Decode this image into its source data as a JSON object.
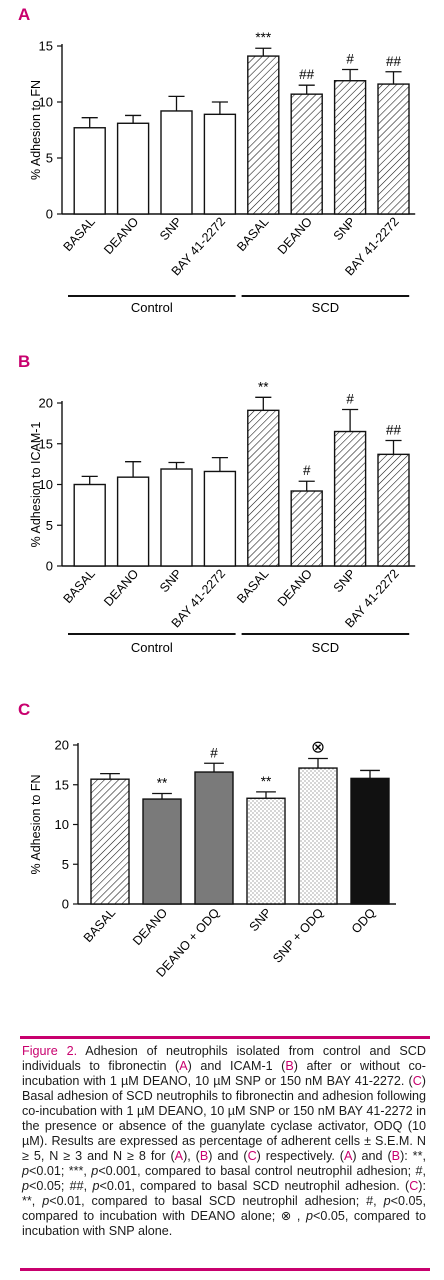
{
  "colors": {
    "accent": "#c8006e",
    "axis": "#111111",
    "bar_outline": "#111111",
    "hatch": "#111111",
    "dark_gray": "#7a7a7a",
    "black": "#111111"
  },
  "chart_data": [
    {
      "panel": "A",
      "type": "bar",
      "ylabel": "% Adhesion to FN",
      "ylim": [
        0,
        15
      ],
      "yticks": [
        0,
        5,
        10,
        15
      ],
      "categories": [
        "BASAL",
        "DEANO",
        "SNP",
        "BAY 41-2272",
        "BASAL",
        "DEANO",
        "SNP",
        "BAY 41-2272"
      ],
      "values": [
        7.7,
        8.1,
        9.2,
        8.9,
        14.1,
        10.7,
        11.9,
        11.6
      ],
      "errors": [
        0.9,
        0.7,
        1.3,
        1.1,
        0.7,
        0.8,
        1.0,
        1.1
      ],
      "fills": [
        "white",
        "white",
        "white",
        "white",
        "hatch",
        "hatch",
        "hatch",
        "hatch"
      ],
      "annotations": [
        "",
        "",
        "",
        "",
        "***",
        "##",
        "#",
        "##"
      ],
      "groups": [
        {
          "label": "Control",
          "from": 0,
          "to": 3
        },
        {
          "label": "SCD",
          "from": 4,
          "to": 7
        }
      ]
    },
    {
      "panel": "B",
      "type": "bar",
      "ylabel": "% Adhesion to ICAM-1",
      "ylim": [
        0,
        20
      ],
      "yticks": [
        0,
        5,
        10,
        15,
        20
      ],
      "categories": [
        "BASAL",
        "DEANO",
        "SNP",
        "BAY 41-2272",
        "BASAL",
        "DEANO",
        "SNP",
        "BAY 41-2272"
      ],
      "values": [
        10.0,
        10.9,
        11.9,
        11.6,
        19.1,
        9.2,
        16.5,
        13.7
      ],
      "errors": [
        1.0,
        1.9,
        0.8,
        1.7,
        1.6,
        1.2,
        2.7,
        1.7
      ],
      "fills": [
        "white",
        "white",
        "white",
        "white",
        "hatch",
        "hatch",
        "hatch",
        "hatch"
      ],
      "annotations": [
        "",
        "",
        "",
        "",
        "**",
        "#",
        "#",
        "##"
      ],
      "groups": [
        {
          "label": "Control",
          "from": 0,
          "to": 3
        },
        {
          "label": "SCD",
          "from": 4,
          "to": 7
        }
      ]
    },
    {
      "panel": "C",
      "type": "bar",
      "ylabel": "% Adhesion to FN",
      "ylim": [
        0,
        20
      ],
      "yticks": [
        0,
        5,
        10,
        15,
        20
      ],
      "categories": [
        "BASAL",
        "DEANO",
        "DEANO + ODQ",
        "SNP",
        "SNP + ODQ",
        "ODQ"
      ],
      "values": [
        15.7,
        13.2,
        16.6,
        13.3,
        17.1,
        15.8
      ],
      "errors": [
        0.7,
        0.7,
        1.1,
        0.8,
        1.2,
        1.0
      ],
      "fills": [
        "hatch",
        "gray",
        "gray",
        "dots",
        "dots",
        "black"
      ],
      "annotations": [
        "",
        "**",
        "#",
        "**",
        "⊗",
        ""
      ]
    }
  ],
  "caption": {
    "lead": "Figure 2.",
    "text_html": "Adhesion of neutrophils isolated from control and SCD individuals to fibronectin (<span class=\"ref\">A</span>) and ICAM-1 (<span class=\"ref\">B</span>) after or without co-incubation with 1 µM DEANO, 10 µM SNP or 150 nM BAY 41-2272. (<span class=\"ref\">C</span>) Basal adhesion of SCD neutrophils to fibronectin and adhesion following co-incubation with 1 µM DEANO, 10 µM SNP or 150 nM BAY 41-2272 in the presence or absence of the guanylate cyclase activator, ODQ (10 µM). Results are expressed as percentage of adherent cells ± S.E.M. N ≥ 5, N ≥ 3 and N ≥ 8 for (<span class=\"ref\">A</span>), (<span class=\"ref\">B</span>) and (<span class=\"ref\">C</span>) respectively. (<span class=\"ref\">A</span>) and (<span class=\"ref\">B</span>): **, <i>p</i>&lt;0.01; ***, <i>p</i>&lt;0.001, compared to basal control neutrophil adhesion; #, <i>p</i>&lt;0.05; ##, <i>p</i>&lt;0.01, compared to basal SCD neutrophil adhesion. (<span class=\"ref\">C</span>): **, <i>p</i>&lt;0.01, compared to basal SCD neutrophil adhesion; #, <i>p</i>&lt;0.05, compared to incubation with DEANO alone; ⊗ , <i>p</i>&lt;0.05, compared to incubation with SNP alone."
  }
}
